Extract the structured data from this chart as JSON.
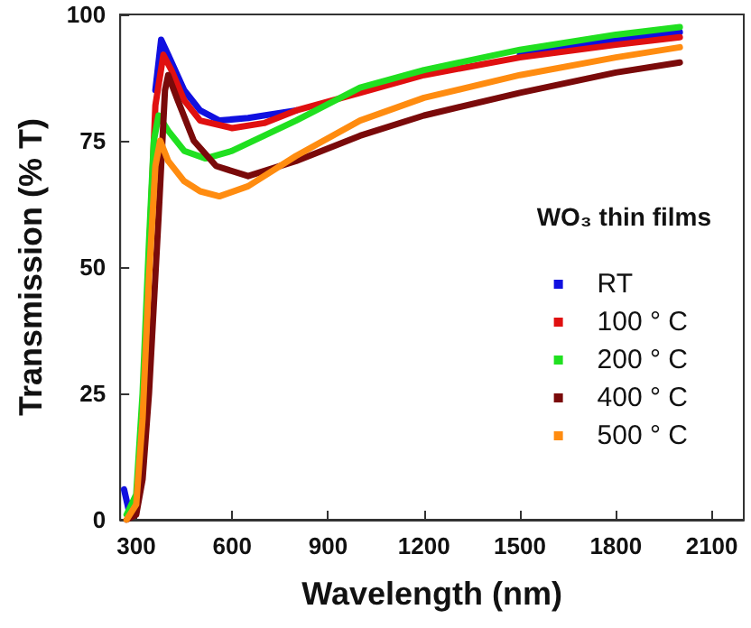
{
  "chart_data": {
    "type": "line",
    "xlabel": "Wavelength (nm)",
    "ylabel": "Transmission (% T)",
    "legend_title": "WO₃ thin films",
    "xlim": [
      250,
      2200
    ],
    "ylim": [
      0,
      100
    ],
    "xticks": [
      300,
      600,
      900,
      1200,
      1500,
      1800,
      2100
    ],
    "yticks": [
      0,
      25,
      50,
      75,
      100
    ],
    "grid": false,
    "legend": "right",
    "marker": "none",
    "line_style": "solid",
    "series": [
      {
        "name": "RT",
        "color": "#1010e0",
        "x": [
          262,
          280,
          320,
          340,
          360,
          378,
          400,
          450,
          500,
          560,
          650,
          800,
          1000,
          1200,
          1500,
          1800,
          2000
        ],
        "values": [
          6,
          1,
          null,
          null,
          85,
          95,
          92,
          85,
          81,
          79,
          79.5,
          81,
          null,
          null,
          92,
          95,
          96.5
        ]
      },
      {
        "name": "100 ° C",
        "color": "#e01010",
        "x": [
          340,
          360,
          385,
          410,
          450,
          500,
          600,
          700,
          800,
          1000,
          1200,
          1500,
          1800,
          2000
        ],
        "values": [
          52,
          82,
          92,
          89,
          83,
          79,
          77.5,
          78.5,
          81,
          84.5,
          88,
          91.5,
          94,
          95.5
        ]
      },
      {
        "name": "200 ° C",
        "color": "#20e020",
        "x": [
          270,
          300,
          320,
          340,
          355,
          370,
          400,
          450,
          517,
          600,
          700,
          800,
          1000,
          1200,
          1500,
          1800,
          2000
        ],
        "values": [
          1,
          5,
          25,
          55,
          75,
          80,
          77,
          73,
          71.5,
          73,
          76,
          79,
          85.5,
          89,
          93,
          96,
          97.5
        ]
      },
      {
        "name": "400 ° C",
        "color": "#7a0a0a",
        "x": [
          270,
          300,
          320,
          340,
          370,
          390,
          400,
          430,
          480,
          550,
          650,
          800,
          1000,
          1200,
          1500,
          1800,
          2000
        ],
        "values": [
          0,
          1,
          8,
          25,
          60,
          85,
          88,
          83,
          75,
          70,
          68,
          71,
          76,
          80,
          84.5,
          88.5,
          90.5
        ]
      },
      {
        "name": "500 ° C",
        "color": "#ff8c10",
        "x": [
          270,
          300,
          320,
          340,
          360,
          375,
          400,
          450,
          500,
          560,
          650,
          800,
          1000,
          1200,
          1500,
          1800,
          2000
        ],
        "values": [
          0,
          3,
          20,
          48,
          70,
          75,
          71,
          67,
          65,
          64,
          66,
          72,
          79,
          83.5,
          88,
          91.5,
          93.5
        ]
      }
    ]
  }
}
